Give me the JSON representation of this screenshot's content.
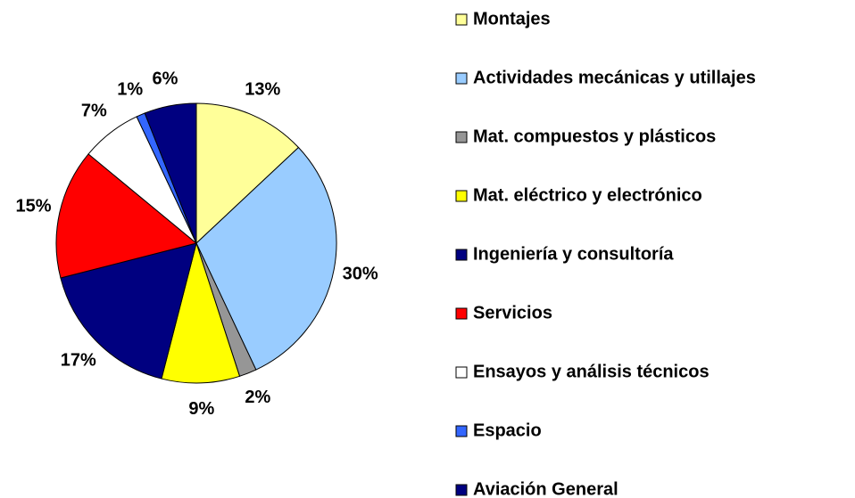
{
  "chart_data": {
    "type": "pie",
    "categories": [
      "Montajes",
      "Actividades mecánicas y utillajes",
      "Mat. compuestos y plásticos",
      "Mat. eléctrico y electrónico",
      "Ingeniería y consultoría",
      "Servicios",
      "Ensayos y análisis técnicos",
      "Espacio",
      "Aviación General"
    ],
    "values": [
      13,
      30,
      2,
      9,
      17,
      15,
      7,
      1,
      6
    ],
    "value_labels": [
      "13%",
      "30%",
      "2%",
      "9%",
      "17%",
      "15%",
      "7%",
      "1%",
      "6%"
    ],
    "colors": [
      "#ffff99",
      "#99ccff",
      "#969696",
      "#ffff00",
      "#000080",
      "#ff0000",
      "#ffffff",
      "#3366ff",
      "#000080"
    ],
    "legend": "right"
  }
}
